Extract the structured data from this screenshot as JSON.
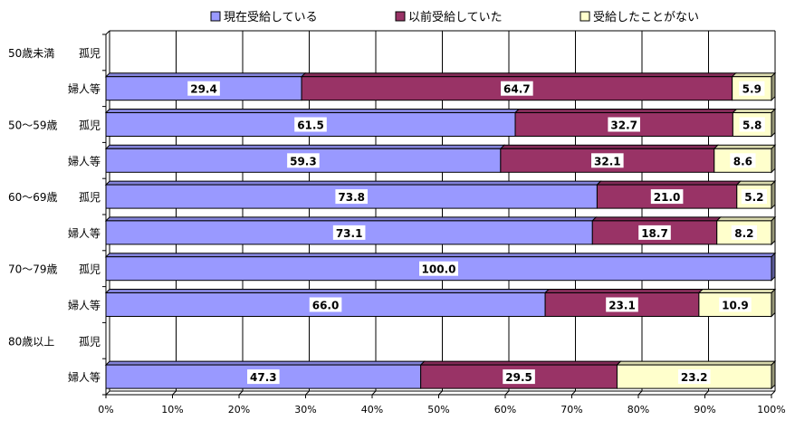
{
  "chart_data": {
    "type": "bar",
    "orientation": "horizontal",
    "stacked": true,
    "percent": true,
    "xlim": [
      0,
      100
    ],
    "x_ticks": [
      "0%",
      "10%",
      "20%",
      "30%",
      "40%",
      "50%",
      "60%",
      "70%",
      "80%",
      "90%",
      "100%"
    ],
    "grid": true,
    "legend_position": "top",
    "rows": [
      {
        "group": "50歳未満",
        "label": "孤児"
      },
      {
        "group": "",
        "label": "婦人等"
      },
      {
        "group": "50～59歳",
        "label": "孤児"
      },
      {
        "group": "",
        "label": "婦人等"
      },
      {
        "group": "60～69歳",
        "label": "孤児"
      },
      {
        "group": "",
        "label": "婦人等"
      },
      {
        "group": "70～79歳",
        "label": "孤児"
      },
      {
        "group": "",
        "label": "婦人等"
      },
      {
        "group": "80歳以上",
        "label": "孤児"
      },
      {
        "group": "",
        "label": "婦人等"
      }
    ],
    "series": [
      {
        "name": "現在受給している",
        "color": "#9999ff",
        "values": [
          null,
          29.4,
          61.5,
          59.3,
          73.8,
          73.1,
          100.0,
          66.0,
          null,
          47.3
        ]
      },
      {
        "name": "以前受給していた",
        "color": "#993366",
        "values": [
          null,
          64.7,
          32.7,
          32.1,
          21.0,
          18.7,
          0.0,
          23.1,
          null,
          29.5
        ]
      },
      {
        "name": "受給したことがない",
        "color": "#ffffcc",
        "values": [
          null,
          5.9,
          5.8,
          8.6,
          5.2,
          8.2,
          0.0,
          10.9,
          null,
          23.2
        ]
      }
    ],
    "data_labels": [
      [
        null,
        null,
        null
      ],
      [
        "29.4",
        "64.7",
        "5.9"
      ],
      [
        "61.5",
        "32.7",
        "5.8"
      ],
      [
        "59.3",
        "32.1",
        "8.6"
      ],
      [
        "73.8",
        "21.0",
        "5.2"
      ],
      [
        "73.1",
        "18.7",
        "8.2"
      ],
      [
        "100.0",
        null,
        null
      ],
      [
        "66.0",
        "23.1",
        "10.9"
      ],
      [
        null,
        null,
        null
      ],
      [
        "47.3",
        "29.5",
        "23.2"
      ]
    ]
  }
}
